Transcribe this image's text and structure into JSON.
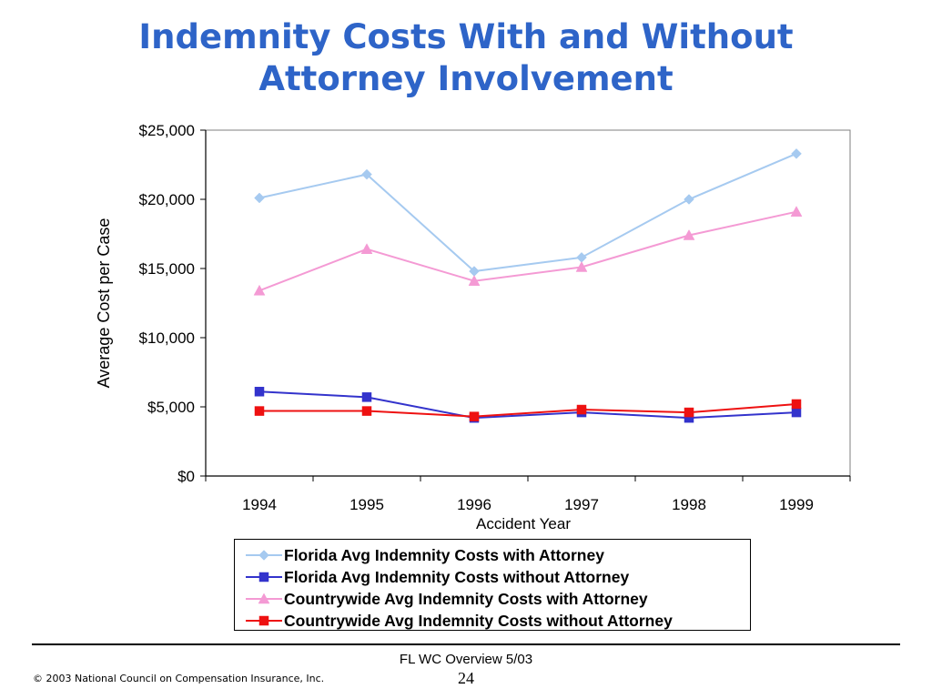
{
  "slide": {
    "title_line1": "Indemnity Costs With and Without",
    "title_line2": "Attorney Involvement",
    "footer_caption": "FL WC Overview 5/03",
    "page_number": "24",
    "copyright": "© 2003 National Council on Compensation Insurance, Inc."
  },
  "colors": {
    "title": "#2e64c8",
    "florida_with": "#a6caf0",
    "florida_without": "#3333cc",
    "countrywide_with": "#f49ad4",
    "countrywide_without": "#ee1111"
  },
  "chart_data": {
    "type": "line",
    "title": "",
    "xlabel": "Accident Year",
    "ylabel": "Average Cost per Case",
    "categories": [
      "1994",
      "1995",
      "1996",
      "1997",
      "1998",
      "1999"
    ],
    "ylim": [
      0,
      25000
    ],
    "yticks": [
      0,
      5000,
      10000,
      15000,
      20000,
      25000
    ],
    "ytick_labels": [
      "$0",
      "$5,000",
      "$10,000",
      "$15,000",
      "$20,000",
      "$25,000"
    ],
    "grid": false,
    "legend_position": "bottom",
    "series": [
      {
        "name": "Florida Avg Indemnity Costs with Attorney",
        "marker": "diamond",
        "color": "#a6caf0",
        "values": [
          20100,
          21800,
          14800,
          15800,
          20000,
          23300
        ]
      },
      {
        "name": "Florida Avg Indemnity Costs without Attorney",
        "marker": "square",
        "color": "#3333cc",
        "values": [
          6100,
          5700,
          4200,
          4600,
          4200,
          4600
        ]
      },
      {
        "name": "Countrywide Avg Indemnity Costs with Attorney",
        "marker": "triangle",
        "color": "#f49ad4",
        "values": [
          13400,
          16400,
          14100,
          15100,
          17400,
          19100
        ]
      },
      {
        "name": "Countrywide Avg Indemnity Costs without Attorney",
        "marker": "square",
        "color": "#ee1111",
        "values": [
          4700,
          4700,
          4300,
          4800,
          4600,
          5200
        ]
      }
    ]
  }
}
